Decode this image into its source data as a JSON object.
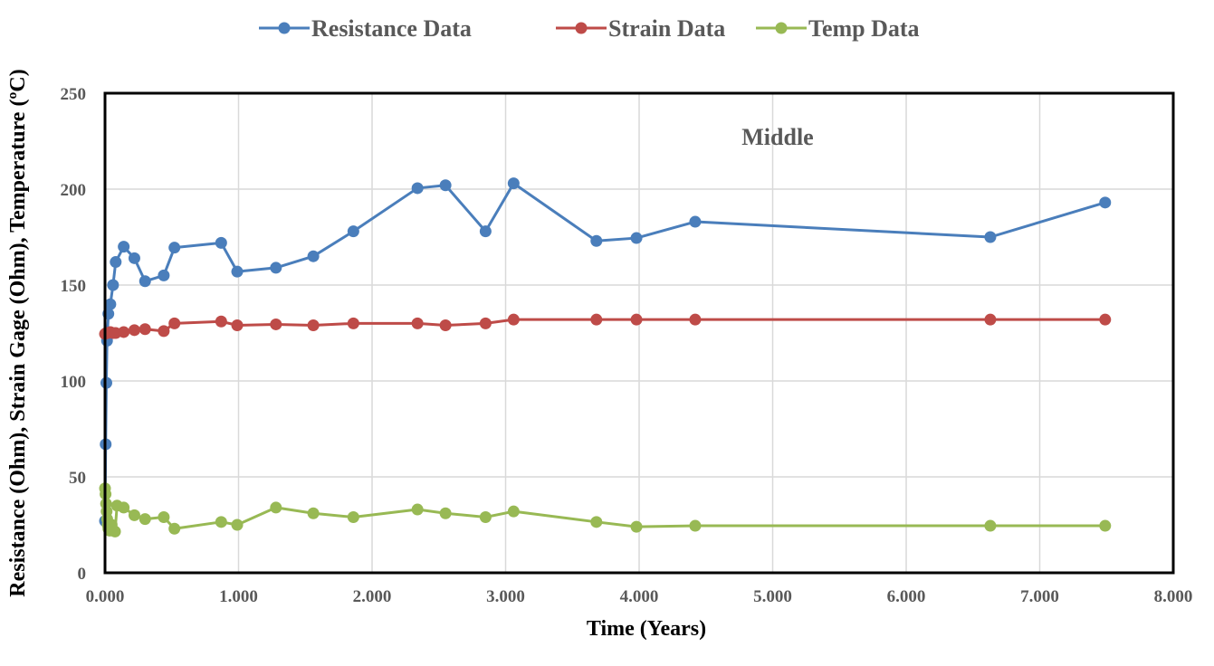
{
  "chart_data": {
    "type": "line",
    "title": "",
    "xlabel": "Time (Years)",
    "ylabel": "Resistance (Ohm), Strain Gage (Ohm), Temperature (ºC)",
    "xlim": [
      0,
      8
    ],
    "ylim": [
      0,
      250
    ],
    "x_ticks": [
      0,
      1,
      2,
      3,
      4,
      5,
      6,
      7,
      8
    ],
    "x_tick_labels": [
      "0.000",
      "1.000",
      "2.000",
      "3.000",
      "4.000",
      "5.000",
      "6.000",
      "7.000",
      "8.000"
    ],
    "y_ticks": [
      0,
      50,
      100,
      150,
      200,
      250
    ],
    "y_tick_labels": [
      "0",
      "50",
      "100",
      "150",
      "200",
      "250"
    ],
    "grid": true,
    "legend_position": "top-center",
    "annotation": "Middle",
    "series": [
      {
        "name": "Resistance Data",
        "color": "#4a7ebb",
        "points": [
          [
            0.0,
            27
          ],
          [
            0.005,
            67
          ],
          [
            0.01,
            99
          ],
          [
            0.015,
            121
          ],
          [
            0.025,
            135
          ],
          [
            0.04,
            140
          ],
          [
            0.06,
            150
          ],
          [
            0.08,
            162
          ],
          [
            0.14,
            170
          ],
          [
            0.22,
            164
          ],
          [
            0.3,
            152
          ],
          [
            0.44,
            155
          ],
          [
            0.52,
            169.5
          ],
          [
            0.87,
            172
          ],
          [
            0.99,
            157
          ],
          [
            1.28,
            159
          ],
          [
            1.56,
            165
          ],
          [
            1.86,
            178
          ],
          [
            2.34,
            200.5
          ],
          [
            2.55,
            202
          ],
          [
            2.85,
            178
          ],
          [
            3.06,
            203
          ],
          [
            3.68,
            173
          ],
          [
            3.98,
            174.5
          ],
          [
            4.42,
            183
          ],
          [
            6.63,
            175
          ],
          [
            7.49,
            193
          ]
        ]
      },
      {
        "name": "Strain Data",
        "color": "#be4b48",
        "points": [
          [
            0.0,
            124.5
          ],
          [
            0.01,
            125
          ],
          [
            0.02,
            125
          ],
          [
            0.04,
            125.5
          ],
          [
            0.06,
            125
          ],
          [
            0.08,
            125
          ],
          [
            0.14,
            125.5
          ],
          [
            0.22,
            126.5
          ],
          [
            0.3,
            127
          ],
          [
            0.44,
            126
          ],
          [
            0.52,
            130
          ],
          [
            0.87,
            131
          ],
          [
            0.99,
            129
          ],
          [
            1.28,
            129.5
          ],
          [
            1.56,
            129
          ],
          [
            1.86,
            130
          ],
          [
            2.34,
            130
          ],
          [
            2.55,
            129
          ],
          [
            2.85,
            130
          ],
          [
            3.06,
            132
          ],
          [
            3.68,
            132
          ],
          [
            3.98,
            132
          ],
          [
            4.42,
            132
          ],
          [
            6.63,
            132
          ],
          [
            7.49,
            132
          ]
        ]
      },
      {
        "name": "Temp Data",
        "color": "#98b954",
        "points": [
          [
            0.0,
            44
          ],
          [
            0.004,
            41
          ],
          [
            0.008,
            36
          ],
          [
            0.012,
            32
          ],
          [
            0.016,
            28
          ],
          [
            0.02,
            25
          ],
          [
            0.025,
            23
          ],
          [
            0.035,
            22
          ],
          [
            0.05,
            25
          ],
          [
            0.06,
            22
          ],
          [
            0.075,
            21.5
          ],
          [
            0.09,
            35
          ],
          [
            0.14,
            34
          ],
          [
            0.22,
            30
          ],
          [
            0.3,
            28
          ],
          [
            0.44,
            29
          ],
          [
            0.52,
            23
          ],
          [
            0.87,
            26.5
          ],
          [
            0.99,
            25
          ],
          [
            1.28,
            34
          ],
          [
            1.56,
            31
          ],
          [
            1.86,
            29
          ],
          [
            2.34,
            33
          ],
          [
            2.55,
            31
          ],
          [
            2.85,
            29
          ],
          [
            3.06,
            32
          ],
          [
            3.68,
            26.5
          ],
          [
            3.98,
            24
          ],
          [
            4.42,
            24.5
          ],
          [
            6.63,
            24.5
          ],
          [
            7.49,
            24.5
          ]
        ]
      }
    ]
  }
}
